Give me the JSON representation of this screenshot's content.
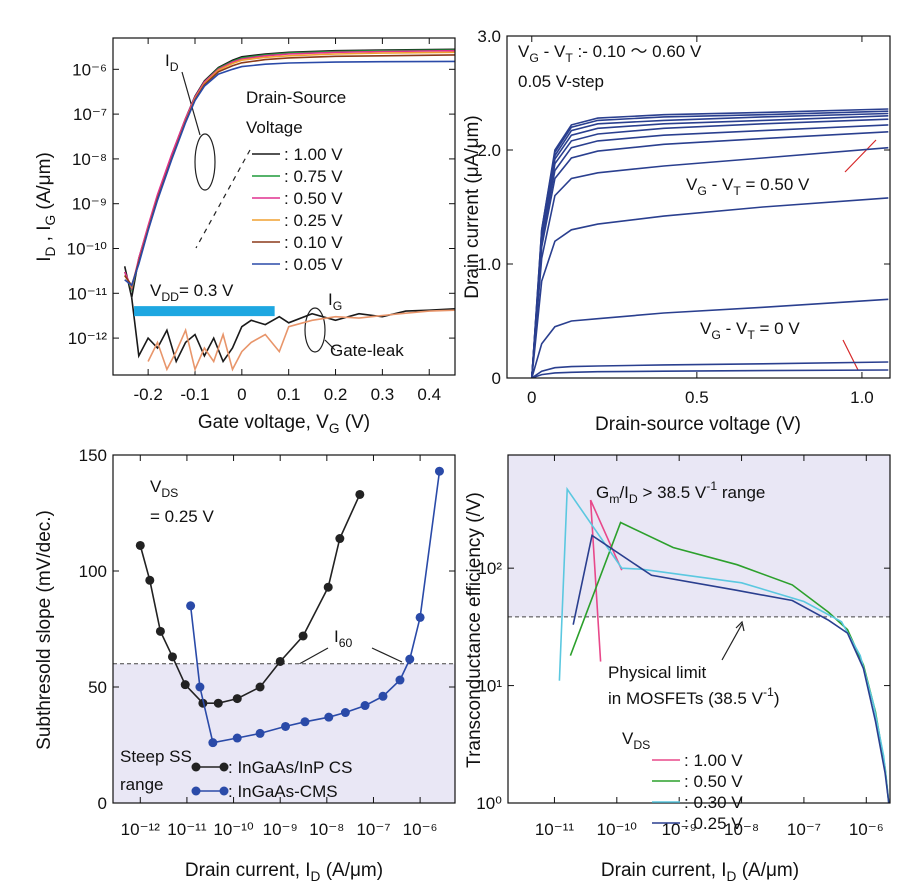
{
  "chart_data": [
    {
      "type": "line",
      "xlabel": [
        "Gate voltage, V",
        {
          "sub": "G"
        },
        " (V)"
      ],
      "ylabel": [
        "I",
        {
          "sub": "D"
        },
        " , I",
        {
          "sub": "G"
        },
        " (A/μm)"
      ],
      "xlim": [
        -0.275,
        0.455
      ],
      "xticks": [
        -0.2,
        -0.1,
        0,
        0.1,
        0.2,
        0.3,
        0.4
      ],
      "yscale": "log",
      "ylim": [
        1.5e-13,
        5e-06
      ],
      "yticks": [
        {
          "value": 1e-12,
          "label": "10⁻¹²"
        },
        {
          "value": 1e-11,
          "label": "10⁻¹¹"
        },
        {
          "value": 1e-10,
          "label": "10⁻¹⁰"
        },
        {
          "value": 1e-09,
          "label": "10⁻⁹"
        },
        {
          "value": 1e-08,
          "label": "10⁻⁸"
        },
        {
          "value": 1e-07,
          "label": "10⁻⁷"
        },
        {
          "value": 1e-06,
          "label": "10⁻⁶"
        }
      ],
      "x": [
        -0.25,
        -0.235,
        -0.22,
        -0.2,
        -0.18,
        -0.15,
        -0.12,
        -0.1,
        -0.08,
        -0.05,
        -0.02,
        0,
        0.05,
        0.1,
        0.2,
        0.3,
        0.455
      ],
      "series": [
        {
          "name": ": 1.00 V",
          "color": "#1a1a1a",
          "values": [
            4e-11,
            8e-12,
            6e-11,
            3e-10,
            1.5e-09,
            1.2e-08,
            8e-08,
            2.5e-07,
            5.5e-07,
            1.1e-06,
            1.6e-06,
            1.9e-06,
            2.2e-06,
            2.4e-06,
            2.6e-06,
            2.7e-06,
            2.8e-06
          ]
        },
        {
          "name": ": 0.75 V",
          "color": "#1f9a3a",
          "values": [
            3e-11,
            1.2e-11,
            5.5e-11,
            2.8e-10,
            1.4e-09,
            1.1e-08,
            7.5e-08,
            2.4e-07,
            5.3e-07,
            1.05e-06,
            1.5e-06,
            1.8e-06,
            2.1e-06,
            2.3e-06,
            2.5e-06,
            2.6e-06,
            2.7e-06
          ]
        },
        {
          "name": ": 0.50 V",
          "color": "#e0308f",
          "values": [
            3e-11,
            1.3e-11,
            6e-11,
            3.2e-10,
            1.6e-09,
            1.25e-08,
            8e-08,
            2.4e-07,
            5.2e-07,
            1e-06,
            1.45e-06,
            1.7e-06,
            2e-06,
            2.2e-06,
            2.4e-06,
            2.5e-06,
            2.6e-06
          ]
        },
        {
          "name": ": 0.25 V",
          "color": "#f0a030",
          "values": [
            2.5e-11,
            1.4e-11,
            5e-11,
            2.7e-10,
            1.3e-09,
            1e-08,
            7e-08,
            2.2e-07,
            4.8e-07,
            9.5e-07,
            1.35e-06,
            1.6e-06,
            1.85e-06,
            2e-06,
            2.2e-06,
            2.3e-06,
            2.4e-06
          ]
        },
        {
          "name": ": 0.10 V",
          "color": "#8b3a1a",
          "values": [
            2.5e-11,
            1.5e-11,
            5e-11,
            2.6e-10,
            1.3e-09,
            1e-08,
            6.8e-08,
            2.1e-07,
            4.5e-07,
            8.8e-07,
            1.2e-06,
            1.4e-06,
            1.65e-06,
            1.8e-06,
            1.95e-06,
            2e-06,
            2.1e-06
          ]
        },
        {
          "name": ": 0.05 V",
          "color": "#2a4aa8",
          "values": [
            2e-11,
            1.5e-11,
            4.5e-11,
            2.5e-10,
            1.2e-09,
            9.5e-09,
            6.5e-08,
            2e-07,
            4.2e-07,
            7.8e-07,
            1e-06,
            1.15e-06,
            1.3e-06,
            1.38e-06,
            1.45e-06,
            1.48e-06,
            1.5e-06
          ]
        },
        {
          "color": "#1a1a1a",
          "x": [
            -0.235,
            -0.22,
            -0.2,
            -0.18,
            -0.16,
            -0.14,
            -0.12,
            -0.1,
            -0.08,
            -0.06,
            -0.04,
            -0.02,
            0,
            0.02,
            0.05,
            0.08,
            0.1,
            0.15,
            0.2,
            0.25,
            0.3,
            0.35,
            0.4,
            0.455
          ],
          "values": [
            8e-12,
            4e-13,
            1e-12,
            6e-13,
            1.5e-12,
            3e-13,
            8e-13,
            1.2e-12,
            4e-13,
            1e-12,
            3e-13,
            6e-13,
            1.8e-12,
            2.5e-12,
            2e-12,
            3e-12,
            2.2e-12,
            3.5e-12,
            2.5e-12,
            3.5e-12,
            3e-12,
            4e-12,
            4.2e-12,
            4.5e-12
          ]
        },
        {
          "color": "#e8956a",
          "x": [
            -0.2,
            -0.18,
            -0.16,
            -0.14,
            -0.12,
            -0.1,
            -0.08,
            -0.06,
            -0.04,
            -0.02,
            0,
            0.02,
            0.05,
            0.08,
            0.1,
            0.15,
            0.2,
            0.25,
            0.3,
            0.35,
            0.4,
            0.455
          ],
          "values": [
            3e-13,
            8e-13,
            2e-13,
            5e-13,
            1.5e-12,
            2e-13,
            6e-13,
            3e-13,
            1.2e-12,
            2e-13,
            5e-13,
            8e-13,
            1.2e-12,
            5e-13,
            1.8e-12,
            2.5e-12,
            3e-12,
            2.8e-12,
            3.2e-12,
            3.6e-12,
            4e-12,
            4.2e-12
          ]
        }
      ],
      "vdd_bar": {
        "label": [
          "V",
          {
            "sub": "DD"
          },
          "= 0.3 V"
        ],
        "x": [
          -0.23,
          0.07
        ],
        "y": 4e-12,
        "color": "#1ea7e1"
      },
      "annotations": [
        {
          "text": [
            "I",
            {
              "sub": "D"
            }
          ]
        },
        {
          "text": "Drain-Source"
        },
        {
          "text": "Voltage"
        },
        {
          "text": [
            "I",
            {
              "sub": "G"
            }
          ]
        },
        {
          "text": "Gate-leak"
        }
      ]
    },
    {
      "type": "line",
      "xlabel": "Drain-source voltage (V)",
      "ylabel": "Drain current (μA/μm)",
      "xlim": [
        -0.075,
        1.085
      ],
      "xticks": [
        0,
        0.5,
        {
          "value": 1,
          "label": "1.0"
        }
      ],
      "ylim": [
        0,
        3
      ],
      "yticks": [
        0,
        {
          "value": 1,
          "label": "1.0"
        },
        {
          "value": 2,
          "label": "2.0"
        },
        {
          "value": 3,
          "label": "3.0"
        }
      ],
      "color": "#2a3f8f",
      "x": [
        0,
        0.03,
        0.07,
        0.12,
        0.2,
        0.4,
        0.7,
        1.08
      ],
      "series": [
        {
          "values": [
            0,
            1.3,
            2.0,
            2.22,
            2.28,
            2.31,
            2.33,
            2.36
          ]
        },
        {
          "values": [
            0,
            1.3,
            1.98,
            2.2,
            2.26,
            2.29,
            2.31,
            2.34
          ]
        },
        {
          "values": [
            0,
            1.25,
            1.95,
            2.17,
            2.23,
            2.26,
            2.29,
            2.32
          ]
        },
        {
          "values": [
            0,
            1.25,
            1.92,
            2.13,
            2.19,
            2.23,
            2.26,
            2.3
          ]
        },
        {
          "values": [
            0,
            1.2,
            1.88,
            2.08,
            2.14,
            2.19,
            2.23,
            2.27
          ]
        },
        {
          "values": [
            0,
            1.2,
            1.82,
            2.02,
            2.08,
            2.13,
            2.17,
            2.22
          ]
        },
        {
          "values": [
            0,
            1.15,
            1.75,
            1.93,
            1.99,
            2.05,
            2.1,
            2.16
          ]
        },
        {
          "values": [
            0,
            1.05,
            1.6,
            1.75,
            1.8,
            1.86,
            1.93,
            2.02
          ]
        },
        {
          "values": [
            0,
            0.85,
            1.2,
            1.3,
            1.35,
            1.42,
            1.5,
            1.58
          ]
        },
        {
          "values": [
            0,
            0.3,
            0.45,
            0.5,
            0.52,
            0.57,
            0.62,
            0.69
          ]
        },
        {
          "values": [
            0,
            0.06,
            0.09,
            0.1,
            0.105,
            0.115,
            0.125,
            0.14
          ]
        },
        {
          "values": [
            0,
            0.03,
            0.045,
            0.05,
            0.055,
            0.06,
            0.065,
            0.07
          ]
        }
      ],
      "annotations": [
        {
          "text": [
            "V",
            {
              "sub": "G"
            },
            " - V",
            {
              "sub": "T"
            },
            " :- 0.10 〜 0.60 V"
          ]
        },
        {
          "text": "0.05 V-step"
        },
        {
          "text": [
            "V",
            {
              "sub": "G"
            },
            " - V",
            {
              "sub": "T"
            },
            " = 0.50 V"
          ],
          "color": "#d62728"
        },
        {
          "text": [
            "V",
            {
              "sub": "G"
            },
            " - V",
            {
              "sub": "T"
            },
            " = 0 V"
          ],
          "color": "#d62728"
        }
      ]
    },
    {
      "type": "line",
      "markers": true,
      "xlabel": [
        "Drain current, I",
        {
          "sub": "D"
        },
        " (A/μm)"
      ],
      "ylabel": "Subthresold slope (mV/dec.)",
      "xscale": "log",
      "xlim": [
        2.6e-13,
        5.6e-06
      ],
      "xticks": [
        {
          "value": 1e-12,
          "label": "10⁻¹²"
        },
        {
          "value": 1e-11,
          "label": "10⁻¹¹"
        },
        {
          "value": 1e-10,
          "label": "10⁻¹⁰"
        },
        {
          "value": 1e-09,
          "label": "10⁻⁹"
        },
        {
          "value": 1e-08,
          "label": "10⁻⁸"
        },
        {
          "value": 1e-07,
          "label": "10⁻⁷"
        },
        {
          "value": 1e-06,
          "label": "10⁻⁶"
        }
      ],
      "ylim": [
        0,
        150
      ],
      "yticks": [
        0,
        50,
        100,
        150
      ],
      "reference": {
        "value": 60,
        "shade": "below",
        "shade_color": "#e9e7f5"
      },
      "series": [
        {
          "name": ": InGaAs/InP CS",
          "color": "#222222",
          "x": [
            1e-12,
            1.6e-12,
            2.7e-12,
            4.9e-12,
            9.2e-12,
            2.2e-11,
            4.7e-11,
            1.2e-10,
            3.7e-10,
            1e-09,
            3.1e-09,
            1.07e-08,
            1.9e-08,
            5.1e-08
          ],
          "values": [
            111,
            96,
            74,
            63,
            51,
            43,
            43,
            45,
            50,
            61,
            72,
            93,
            114,
            133
          ]
        },
        {
          "name": ": InGaAs-CMS",
          "color": "#2a4aa8",
          "x": [
            1.2e-11,
            1.9e-11,
            3.6e-11,
            1.2e-10,
            3.7e-10,
            1.3e-09,
            3.4e-09,
            1.1e-08,
            2.5e-08,
            6.6e-08,
            1.6e-07,
            3.7e-07,
            6e-07,
            1e-06,
            2.6e-06
          ],
          "values": [
            85,
            50,
            26,
            28,
            30,
            33,
            35,
            37,
            39,
            42,
            46,
            53,
            62,
            80,
            143
          ]
        }
      ],
      "annotations": [
        {
          "text": [
            "V",
            {
              "sub": "DS"
            }
          ]
        },
        {
          "text": "= 0.25 V"
        },
        {
          "text": [
            "I",
            {
              "sub": "60"
            }
          ]
        },
        {
          "text": "Steep SS"
        },
        {
          "text": "range"
        }
      ]
    },
    {
      "type": "line",
      "xlabel": [
        "Drain current, I",
        {
          "sub": "D"
        },
        " (A/μm)"
      ],
      "ylabel": "Transconductance efficiency (/V)",
      "xscale": "log",
      "xlim": [
        1.8e-12,
        2.4e-06
      ],
      "xticks": [
        {
          "value": 1e-11,
          "label": "10⁻¹¹"
        },
        {
          "value": 1e-10,
          "label": "10⁻¹⁰"
        },
        {
          "value": 1e-09,
          "label": "10⁻⁹"
        },
        {
          "value": 1e-08,
          "label": "10⁻⁸"
        },
        {
          "value": 1e-07,
          "label": "10⁻⁷"
        },
        {
          "value": 1e-06,
          "label": "10⁻⁶"
        }
      ],
      "yscale": "log",
      "ylim": [
        1,
        920
      ],
      "yticks": [
        {
          "value": 1,
          "label": "10⁰"
        },
        {
          "value": 10,
          "label": "10¹"
        },
        {
          "value": 100,
          "label": "10²"
        }
      ],
      "reference": {
        "value": 38.5,
        "shade": "above",
        "shade_color": "#e9e7f5"
      },
      "series": [
        {
          "name": ": 1.00 V",
          "color": "#e8488a",
          "x": [
            5.5e-11,
            3.8e-11,
            1.2e-10
          ],
          "values": [
            16,
            380,
            96
          ]
        },
        {
          "name": ": 0.50 V",
          "color": "#2ca02c",
          "x": [
            1.8e-11,
            1.15e-10,
            8e-10,
            8.5e-09,
            6.5e-08,
            2.5e-07,
            5e-07,
            9e-07,
            1.4e-06,
            2e-06,
            2.3e-06
          ],
          "values": [
            18,
            245,
            150,
            107,
            72,
            42,
            30,
            15,
            6,
            2,
            1
          ]
        },
        {
          "name": ": 0.30 V",
          "color": "#5bc8e0",
          "x": [
            1.2e-11,
            1.6e-11,
            1.2e-10,
            2.5e-10,
            1e-08,
            1e-07,
            4e-07,
            8e-07,
            1.3e-06,
            1.9e-06,
            2.3e-06
          ],
          "values": [
            11,
            470,
            100,
            98,
            75,
            52,
            35,
            18,
            7,
            2.5,
            1
          ]
        },
        {
          "name": ": 0.25 V",
          "color": "#2a3f8f",
          "x": [
            2e-11,
            4e-11,
            3.6e-10,
            8e-09,
            6.5e-08,
            2.5e-07,
            5e-07,
            9e-07,
            1.4e-06,
            2e-06,
            2.3e-06
          ],
          "values": [
            33,
            190,
            87,
            65,
            53,
            36,
            28,
            14,
            5,
            1.8,
            1
          ]
        }
      ],
      "annotations": [
        {
          "text": [
            "G",
            {
              "sub": "m"
            },
            "/I",
            {
              "sub": "D"
            },
            " > 38.5 V",
            {
              "sup": "-1"
            },
            " range"
          ]
        },
        {
          "text": "Physical limit"
        },
        {
          "text": [
            "in MOSFETs (38.5 V",
            {
              "sup": "-1"
            },
            ")"
          ]
        },
        {
          "text": [
            "V",
            {
              "sub": "DS"
            }
          ]
        }
      ]
    }
  ]
}
